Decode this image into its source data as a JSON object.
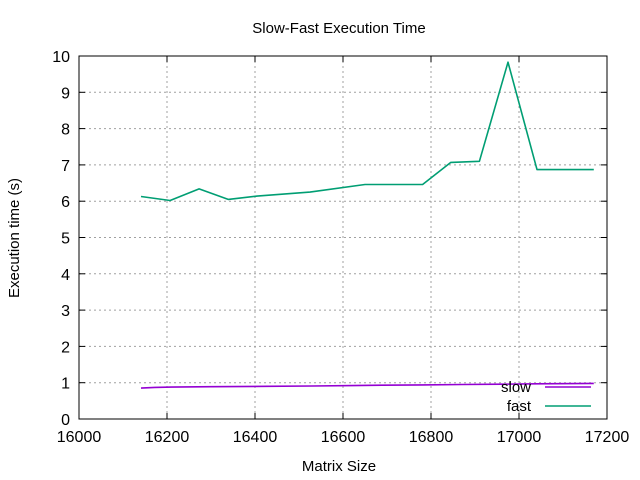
{
  "chart_data": {
    "type": "line",
    "title": "Slow-Fast Execution Time",
    "xlabel": "Matrix Size",
    "ylabel": "Execution time (s)",
    "xlim": [
      16000,
      17200
    ],
    "ylim": [
      0,
      10
    ],
    "xticks": [
      16000,
      16200,
      16400,
      16600,
      16800,
      17000,
      17200
    ],
    "yticks": [
      0,
      1,
      2,
      3,
      4,
      5,
      6,
      7,
      8,
      9,
      10
    ],
    "grid": true,
    "legend_position": "bottom-right",
    "series": [
      {
        "name": "slow",
        "color": "#9400d3",
        "points": [
          [
            16141,
            0.85
          ],
          [
            16172,
            0.87
          ],
          [
            16210,
            0.88
          ],
          [
            16300,
            0.89
          ],
          [
            16430,
            0.9
          ],
          [
            16530,
            0.91
          ],
          [
            16620,
            0.92
          ],
          [
            16690,
            0.93
          ],
          [
            16780,
            0.94
          ],
          [
            16870,
            0.95
          ],
          [
            16960,
            0.96
          ],
          [
            17040,
            0.97
          ],
          [
            17170,
            0.98
          ]
        ]
      },
      {
        "name": "fast",
        "color": "#009e73",
        "points": [
          [
            16141,
            6.13
          ],
          [
            16207,
            6.02
          ],
          [
            16273,
            6.34
          ],
          [
            16339,
            6.05
          ],
          [
            16405,
            6.14
          ],
          [
            16525,
            6.25
          ],
          [
            16650,
            6.46
          ],
          [
            16781,
            6.46
          ],
          [
            16845,
            7.07
          ],
          [
            16910,
            7.1
          ],
          [
            16975,
            9.83
          ],
          [
            17041,
            6.87
          ],
          [
            17170,
            6.87
          ]
        ]
      }
    ]
  }
}
